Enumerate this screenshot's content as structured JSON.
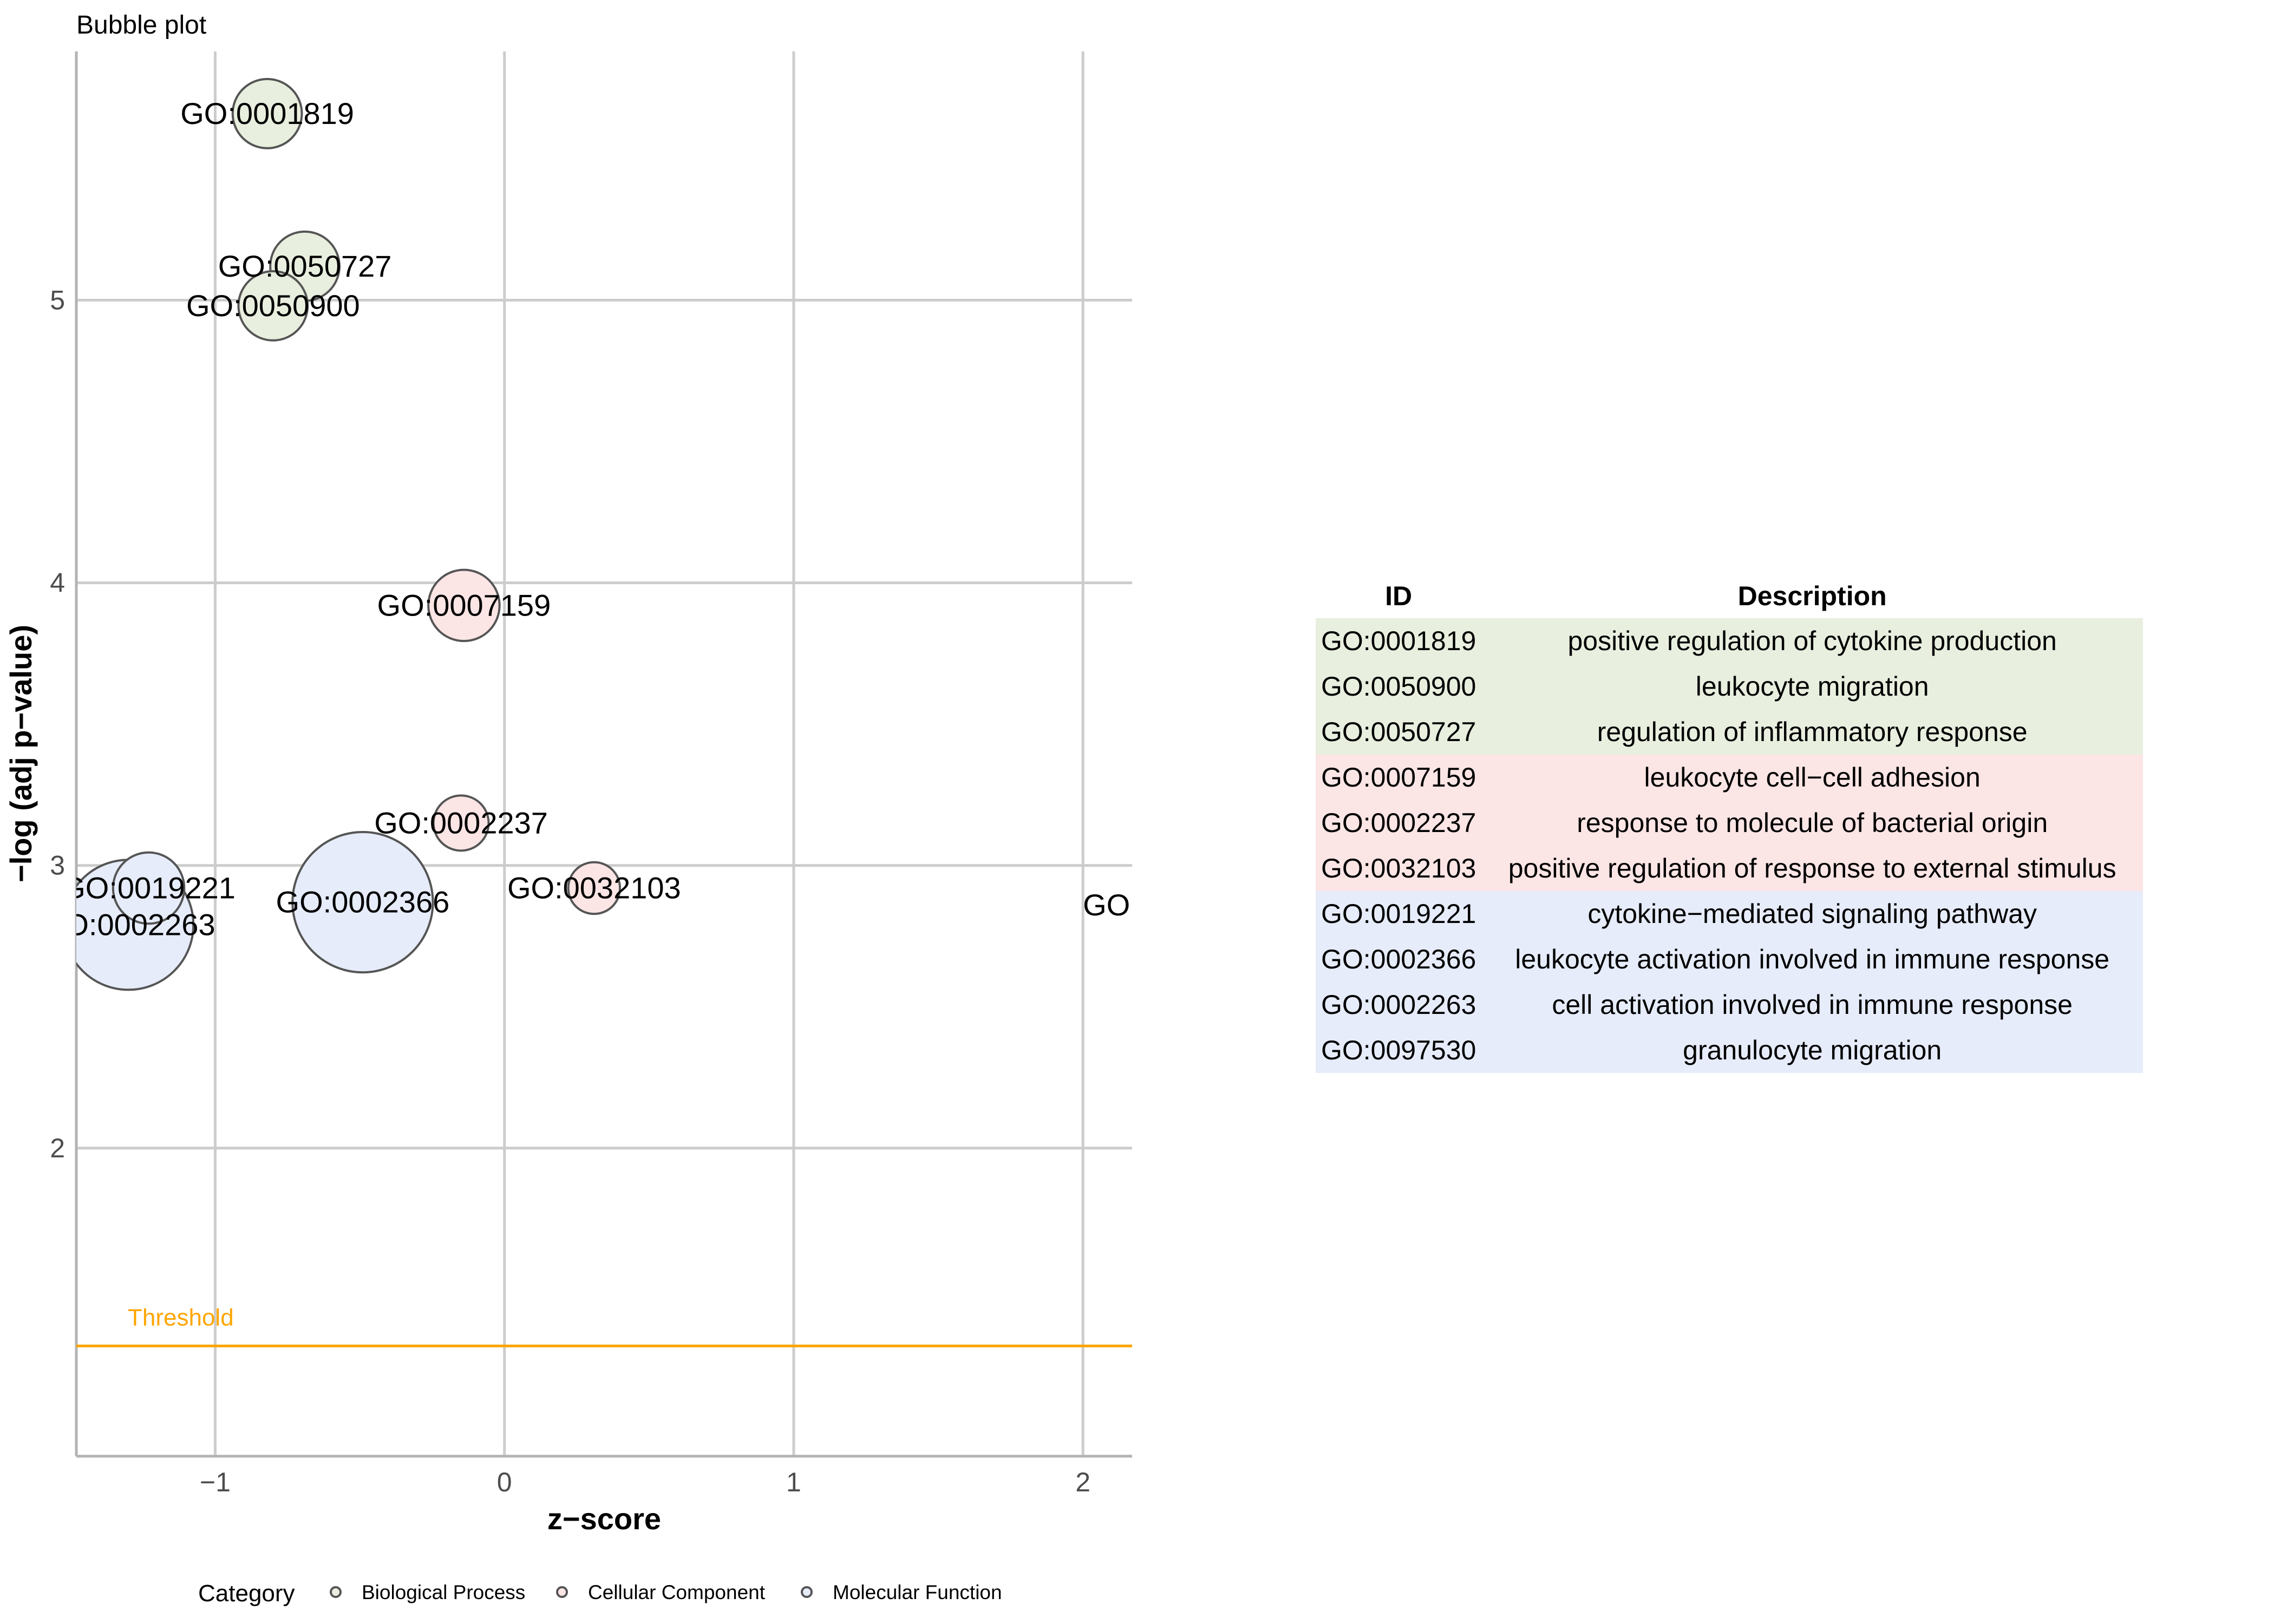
{
  "colors": {
    "Biological Process": "#e8efdf",
    "Cellular Component": "#fce5e5",
    "Molecular Function": "#e6ecfa",
    "threshold": "#FFA500",
    "grid": "#cccccc"
  },
  "chart_data": {
    "type": "scatter",
    "title": "Bubble plot",
    "xlabel": "z−score",
    "ylabel": "−log (adj p−value)",
    "xlim": [
      -1.48,
      2.17
    ],
    "ylim": [
      0.91,
      5.88
    ],
    "xticks": [
      -1,
      0,
      1,
      2
    ],
    "xtick_labels": [
      "−1",
      "0",
      "1",
      "2"
    ],
    "yticks": [
      2,
      3,
      4,
      5
    ],
    "ytick_labels": [
      "2",
      "3",
      "4",
      "5"
    ],
    "grid": true,
    "threshold": {
      "value": 1.3,
      "label": "Threshold"
    },
    "legend": {
      "title": "Category",
      "placement": "bottom",
      "items": [
        "Biological Process",
        "Cellular Component",
        "Molecular Function"
      ]
    },
    "points": [
      {
        "id": "GO:0001819",
        "z": -0.82,
        "logp": 5.66,
        "size": 170,
        "category": "Biological Process"
      },
      {
        "id": "GO:0050727",
        "z": -0.69,
        "logp": 5.12,
        "size": 170,
        "category": "Biological Process"
      },
      {
        "id": "GO:0050900",
        "z": -0.8,
        "logp": 4.98,
        "size": 170,
        "category": "Biological Process"
      },
      {
        "id": "GO:0007159",
        "z": -0.14,
        "logp": 3.92,
        "size": 180,
        "category": "Cellular Component"
      },
      {
        "id": "GO:0002237",
        "z": -0.15,
        "logp": 3.15,
        "size": 108,
        "category": "Cellular Component"
      },
      {
        "id": "GO:0032103",
        "z": 0.31,
        "logp": 2.92,
        "size": 95,
        "category": "Cellular Component"
      },
      {
        "id": "GO:0019221",
        "z": -1.23,
        "logp": 2.92,
        "size": 180,
        "category": "Molecular Function"
      },
      {
        "id": "GO:0002366",
        "z": -0.49,
        "logp": 2.87,
        "size": 700,
        "category": "Molecular Function"
      },
      {
        "id": "GO:0002263",
        "z": -1.3,
        "logp": 2.79,
        "size": 600,
        "category": "Molecular Function"
      },
      {
        "id": "GO:0097530",
        "z": 2.3,
        "logp": 2.86,
        "size": 160,
        "category": "Molecular Function"
      }
    ]
  },
  "table": {
    "headers": {
      "id": "ID",
      "description": "Description"
    },
    "rows": [
      {
        "id": "GO:0001819",
        "description": "positive regulation of cytokine production",
        "category": "Biological Process"
      },
      {
        "id": "GO:0050900",
        "description": "leukocyte migration",
        "category": "Biological Process"
      },
      {
        "id": "GO:0050727",
        "description": "regulation of inflammatory response",
        "category": "Biological Process"
      },
      {
        "id": "GO:0007159",
        "description": "leukocyte cell−cell adhesion",
        "category": "Cellular Component"
      },
      {
        "id": "GO:0002237",
        "description": "response to molecule of bacterial origin",
        "category": "Cellular Component"
      },
      {
        "id": "GO:0032103",
        "description": "positive regulation of response to external stimulus",
        "category": "Cellular Component"
      },
      {
        "id": "GO:0019221",
        "description": "cytokine−mediated signaling pathway",
        "category": "Molecular Function"
      },
      {
        "id": "GO:0002366",
        "description": "leukocyte activation involved in immune response",
        "category": "Molecular Function"
      },
      {
        "id": "GO:0002263",
        "description": "cell activation involved in immune response",
        "category": "Molecular Function"
      },
      {
        "id": "GO:0097530",
        "description": "granulocyte migration",
        "category": "Molecular Function"
      }
    ]
  }
}
